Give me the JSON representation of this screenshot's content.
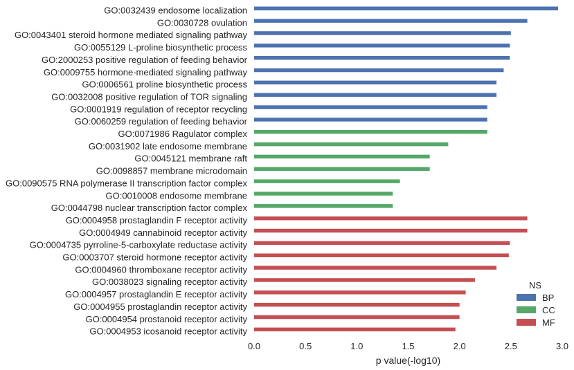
{
  "colors": {
    "BP": "#4c72b0",
    "CC": "#55a868",
    "MF": "#c44e52"
  },
  "chart_data": {
    "type": "bar",
    "orientation": "horizontal",
    "xlabel": "p value(-log10)",
    "xlim": [
      0.0,
      3.0
    ],
    "xticks": [
      "0.0",
      "0.5",
      "1.0",
      "1.5",
      "2.0",
      "2.5",
      "3.0"
    ],
    "grid": false,
    "legend": {
      "title": "NS",
      "placement": "lower-right",
      "entries": [
        "BP",
        "CC",
        "MF"
      ]
    },
    "categories": [
      "GO:0032439 endosome localization",
      "GO:0030728 ovulation",
      "GO:0043401 steroid hormone mediated signaling pathway",
      "GO:0055129 L-proline biosynthetic process",
      "GO:2000253 positive regulation of feeding behavior",
      "GO:0009755 hormone-mediated signaling pathway",
      "GO:0006561 proline biosynthetic process",
      "GO:0032008 positive regulation of TOR signaling",
      "GO:0001919 regulation of receptor recycling",
      "GO:0060259 regulation of feeding behavior",
      "GO:0071986 Ragulator complex",
      "GO:0031902 late endosome membrane",
      "GO:0045121 membrane raft",
      "GO:0098857 membrane microdomain",
      "GO:0090575 RNA polymerase II transcription factor complex",
      "GO:0010008 endosome membrane",
      "GO:0044798 nuclear transcription factor complex",
      "GO:0004958 prostaglandin F receptor activity",
      "GO:0004949 cannabinoid receptor activity",
      "GO:0004735 pyrroline-5-carboxylate reductase activity",
      "GO:0003707 steroid hormone receptor activity",
      "GO:0004960 thromboxane receptor activity",
      "GO:0038023 signaling receptor activity",
      "GO:0004957 prostaglandin E receptor activity",
      "GO:0004955 prostaglandin receptor activity",
      "GO:0004954 prostanoid receptor activity",
      "GO:0004953 icosanoid receptor activity"
    ],
    "groups": [
      "BP",
      "BP",
      "BP",
      "BP",
      "BP",
      "BP",
      "BP",
      "BP",
      "BP",
      "BP",
      "CC",
      "CC",
      "CC",
      "CC",
      "CC",
      "CC",
      "CC",
      "MF",
      "MF",
      "MF",
      "MF",
      "MF",
      "MF",
      "MF",
      "MF",
      "MF",
      "MF"
    ],
    "values": [
      2.96,
      2.66,
      2.5,
      2.49,
      2.49,
      2.43,
      2.36,
      2.36,
      2.27,
      2.27,
      2.27,
      1.89,
      1.71,
      1.71,
      1.42,
      1.35,
      1.35,
      2.66,
      2.66,
      2.49,
      2.48,
      2.36,
      2.15,
      2.06,
      2.0,
      2.0,
      1.96
    ]
  }
}
